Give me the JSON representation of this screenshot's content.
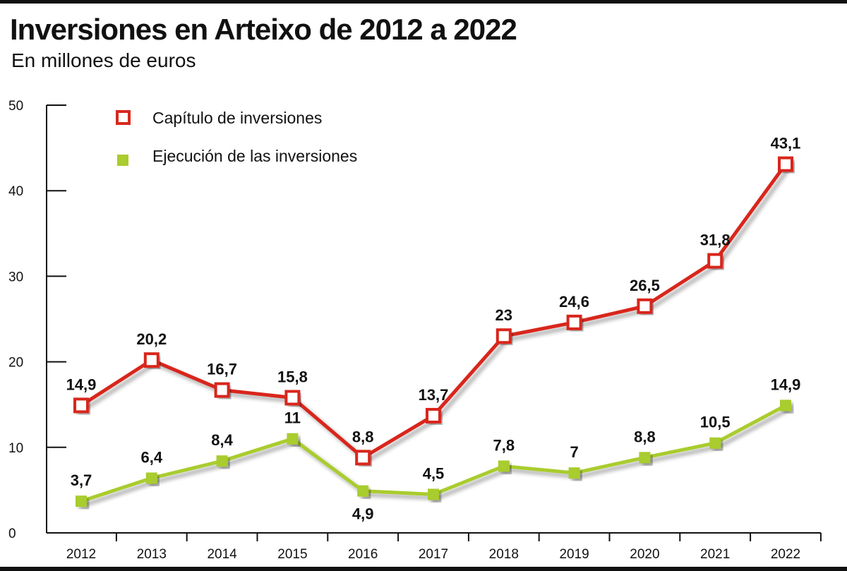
{
  "title": "Inversiones en Arteixo de 2012 a 2022",
  "subtitle": "En millones de euros",
  "chart_data": {
    "type": "line",
    "categories": [
      "2012",
      "2013",
      "2014",
      "2015",
      "2016",
      "2017",
      "2018",
      "2019",
      "2020",
      "2021",
      "2022"
    ],
    "ylim": [
      0,
      50
    ],
    "yticks": [
      0,
      10,
      20,
      30,
      40,
      50
    ],
    "series": [
      {
        "name": "Capítulo de inversiones",
        "color": "#d8281e",
        "marker": "hollow-square",
        "values": [
          14.9,
          20.2,
          16.7,
          15.8,
          8.8,
          13.7,
          23,
          24.6,
          26.5,
          31.8,
          43.1
        ],
        "labels": [
          "14,9",
          "20,2",
          "16,7",
          "15,8",
          "8,8",
          "13,7",
          "23",
          "24,6",
          "26,5",
          "31,8",
          "43,1"
        ]
      },
      {
        "name": "Ejecución de las inversiones",
        "color": "#a9cc2e",
        "marker": "filled-square",
        "values": [
          3.7,
          6.4,
          8.4,
          11,
          4.9,
          4.5,
          7.8,
          7,
          8.8,
          10.5,
          14.9
        ],
        "labels": [
          "3,7",
          "6,4",
          "8,4",
          "11",
          "4,9",
          "4,5",
          "7,8",
          "7",
          "8,8",
          "10,5",
          "14,9"
        ]
      }
    ],
    "legend_position": "top-left"
  }
}
